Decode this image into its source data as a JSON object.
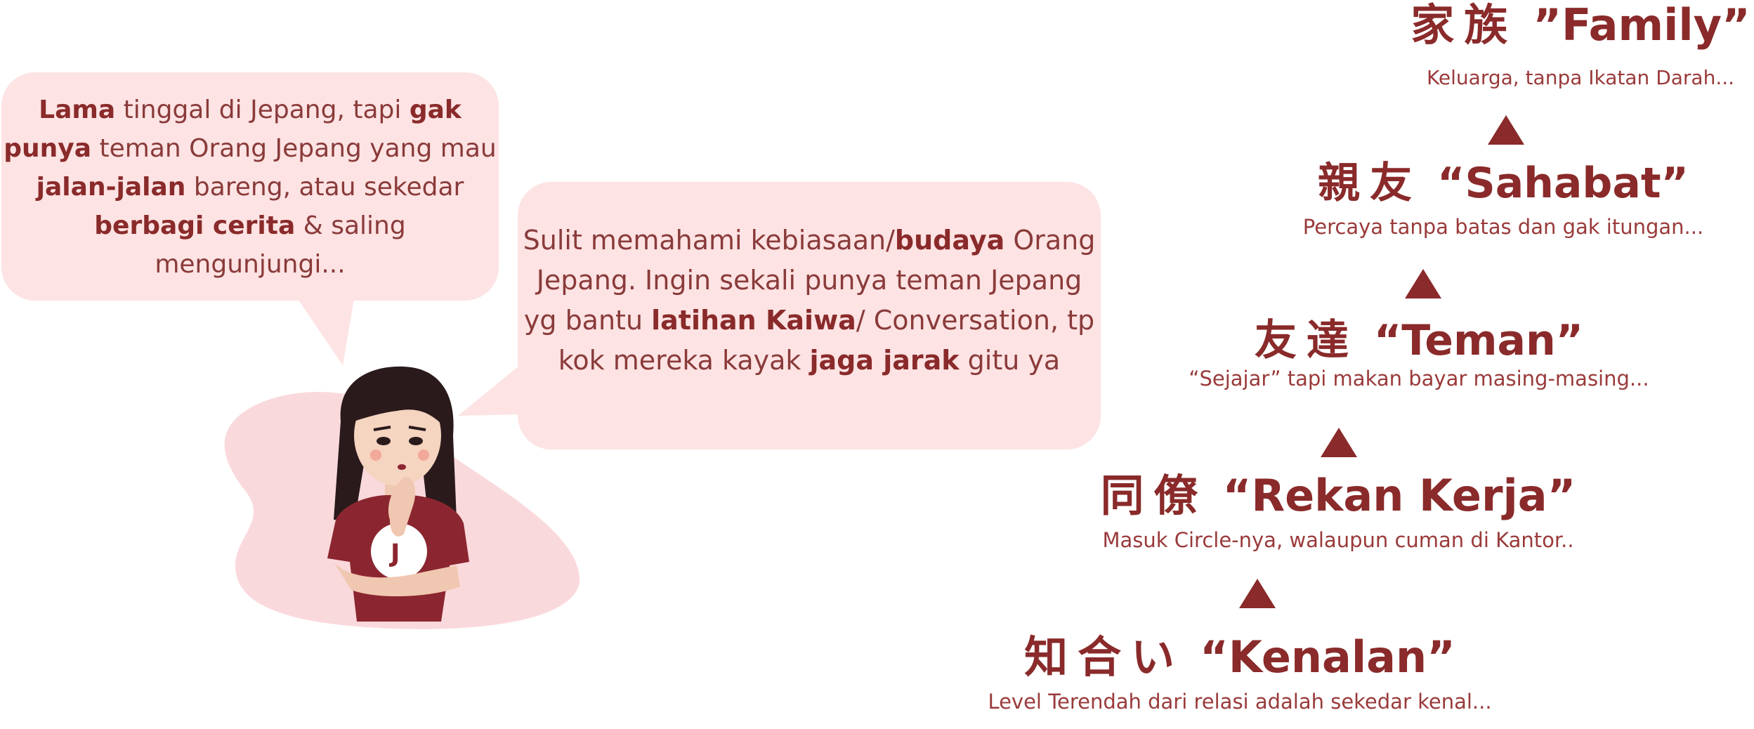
{
  "bubble_left": {
    "segments": [
      {
        "text": "Lama",
        "bold": true
      },
      {
        "text": " tinggal di Jepang, tapi ",
        "bold": false
      },
      {
        "text": "gak punya",
        "bold": true
      },
      {
        "text": " teman Orang Jepang yang mau ",
        "bold": false
      },
      {
        "text": "jalan-jalan",
        "bold": true
      },
      {
        "text": " bareng, atau sekedar ",
        "bold": false
      },
      {
        "text": "berbagi cerita",
        "bold": true
      },
      {
        "text": " & saling mengunjungi...",
        "bold": false
      }
    ]
  },
  "bubble_right": {
    "segments": [
      {
        "text": "Sulit memahami kebiasaan/",
        "bold": false
      },
      {
        "text": "budaya",
        "bold": true
      },
      {
        "text": " Orang Jepang. Ingin sekali punya teman Jepang yg bantu ",
        "bold": false
      },
      {
        "text": "latihan Kaiwa",
        "bold": true
      },
      {
        "text": "/ Conversation, tp kok mereka kayak ",
        "bold": false
      },
      {
        "text": "jaga jarak",
        "bold": true
      },
      {
        "text": " gitu ya",
        "bold": false
      }
    ]
  },
  "levels": [
    {
      "kanji": "家族",
      "title": "”Family”",
      "desc": "Keluarga, tanpa Ikatan Darah..."
    },
    {
      "kanji": "親友",
      "title": "“Sahabat”",
      "desc": "Percaya tanpa batas dan gak itungan..."
    },
    {
      "kanji": "友達",
      "title": "“Teman”",
      "desc": "“Sejajar” tapi makan bayar masing-masing..."
    },
    {
      "kanji": "同僚",
      "title": "“Rekan Kerja”",
      "desc": "Masuk Circle-nya, walaupun cuman di Kantor.."
    },
    {
      "kanji": "知合い",
      "title": "“Kenalan”",
      "desc": "Level Terendah dari relasi adalah sekedar kenal..."
    }
  ],
  "colors": {
    "accent": "#8a2a2a",
    "bubble": "#fde3e3",
    "blob": "#fad9dc",
    "shirt": "#8b2630",
    "hair": "#2a1a1c",
    "skin": "#f5d4c0"
  }
}
